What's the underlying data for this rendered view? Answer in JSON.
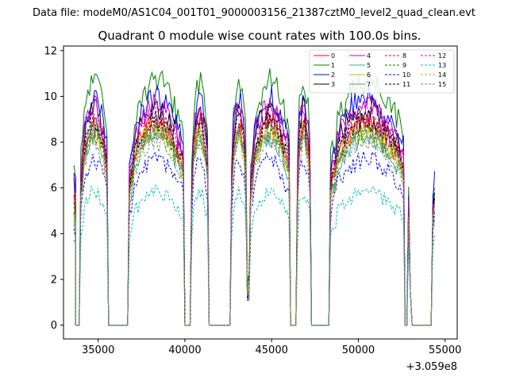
{
  "chart_data": {
    "type": "line",
    "suptitle": "Data file: modeM0/AS1C04_001T01_9000003156_21387cztM0_level2_quad_clean.evt",
    "title": "Quadrant 0 module wise count rates with 100.0s bins.",
    "xlabel": "",
    "ylabel": "",
    "x_offset_label": "+3.059e8",
    "xlim": [
      33000,
      55700
    ],
    "ylim": [
      -0.6,
      12.2
    ],
    "xticks": [
      35000,
      40000,
      45000,
      50000,
      55000
    ],
    "yticks": [
      0,
      2,
      4,
      6,
      8,
      10,
      12
    ],
    "xtick_labels": [
      "35000",
      "40000",
      "45000",
      "50000",
      "55000"
    ],
    "ytick_labels": [
      "0",
      "2",
      "4",
      "6",
      "8",
      "10",
      "12"
    ],
    "legend_position": "top-right",
    "segments": [
      {
        "x_start": 33600,
        "x_end": 33700,
        "shape": "edge"
      },
      {
        "x_start": 33700,
        "x_end": 33900,
        "shape": "zero"
      },
      {
        "x_start": 34000,
        "x_end": 35500,
        "shape": "orbit"
      },
      {
        "x_start": 35600,
        "x_end": 36700,
        "shape": "zero"
      },
      {
        "x_start": 36800,
        "x_end": 39900,
        "shape": "orbit"
      },
      {
        "x_start": 40000,
        "x_end": 40300,
        "shape": "zero"
      },
      {
        "x_start": 40400,
        "x_end": 41300,
        "shape": "orbit"
      },
      {
        "x_start": 41400,
        "x_end": 42600,
        "shape": "zero"
      },
      {
        "x_start": 42700,
        "x_end": 43500,
        "shape": "orbit"
      },
      {
        "x_start": 43600,
        "x_end": 43700,
        "shape": "dip"
      },
      {
        "x_start": 43800,
        "x_end": 46000,
        "shape": "orbit"
      },
      {
        "x_start": 46100,
        "x_end": 46400,
        "shape": "zero"
      },
      {
        "x_start": 46500,
        "x_end": 47200,
        "shape": "orbit"
      },
      {
        "x_start": 47300,
        "x_end": 48300,
        "shape": "zero"
      },
      {
        "x_start": 48400,
        "x_end": 52600,
        "shape": "orbit"
      },
      {
        "x_start": 52700,
        "x_end": 52800,
        "shape": "zero"
      },
      {
        "x_start": 52900,
        "x_end": 52900,
        "shape": "spike"
      },
      {
        "x_start": 53000,
        "x_end": 53000,
        "shape": "low"
      },
      {
        "x_start": 53100,
        "x_end": 54200,
        "shape": "zero"
      },
      {
        "x_start": 54300,
        "x_end": 54400,
        "shape": "edge"
      }
    ],
    "series": [
      {
        "name": "0",
        "color": "#ff0000",
        "dash": "solid",
        "mean_level": 8.2
      },
      {
        "name": "1",
        "color": "#008000",
        "dash": "solid",
        "mean_level": 9.9
      },
      {
        "name": "2",
        "color": "#0000ff",
        "dash": "solid",
        "mean_level": 9.2
      },
      {
        "name": "3",
        "color": "#000000",
        "dash": "solid",
        "mean_level": 8.8
      },
      {
        "name": "4",
        "color": "#bf00bf",
        "dash": "solid",
        "mean_level": 8.9
      },
      {
        "name": "5",
        "color": "#20b2aa",
        "dash": "solid",
        "mean_level": 7.6
      },
      {
        "name": "6",
        "color": "#bfbf00",
        "dash": "solid",
        "mean_level": 7.9
      },
      {
        "name": "7",
        "color": "#808080",
        "dash": "solid",
        "mean_level": 8.0
      },
      {
        "name": "8",
        "color": "#ff0000",
        "dash": "dashed",
        "mean_level": 8.1
      },
      {
        "name": "9",
        "color": "#008000",
        "dash": "dashed",
        "mean_level": 7.8
      },
      {
        "name": "10",
        "color": "#0000ff",
        "dash": "dashed",
        "mean_level": 6.7
      },
      {
        "name": "11",
        "color": "#000000",
        "dash": "dashed",
        "mean_level": 8.3
      },
      {
        "name": "12",
        "color": "#bf00bf",
        "dash": "dashed",
        "mean_level": 8.6
      },
      {
        "name": "13",
        "color": "#00bfbf",
        "dash": "dashed",
        "mean_level": 5.4
      },
      {
        "name": "14",
        "color": "#bfbf00",
        "dash": "dashed",
        "mean_level": 7.6
      },
      {
        "name": "15",
        "color": "#808080",
        "dash": "dashed",
        "mean_level": 7.4
      }
    ]
  }
}
